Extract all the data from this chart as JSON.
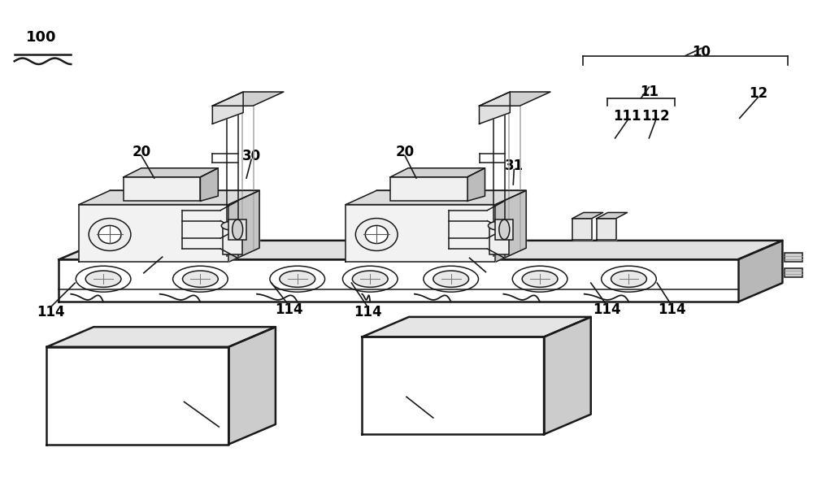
{
  "bg_color": "#ffffff",
  "line_color": "#1a1a1a",
  "fill_light": "#f5f5f5",
  "fill_mid": "#e0e0e0",
  "fill_dark": "#c8c8c8",
  "fill_darker": "#b0b0b0"
}
